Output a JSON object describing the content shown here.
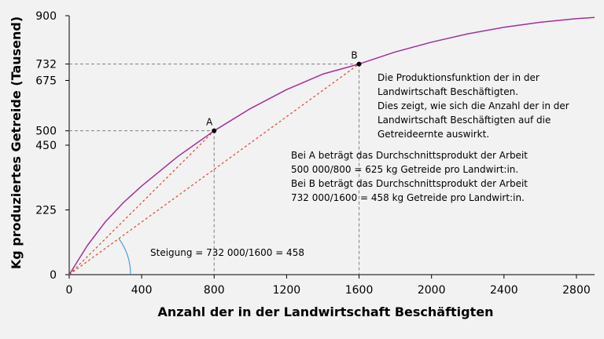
{
  "chart_data": {
    "type": "line",
    "xlabel": "Anzahl der in der Landwirtschaft Beschäftigten",
    "ylabel": "Kg produziertes Getreide (Tausend)",
    "xlim": [
      0,
      2900
    ],
    "ylim": [
      0,
      900
    ],
    "x_ticks": [
      "0",
      "400",
      "800",
      "1200",
      "1600",
      "2000",
      "2400",
      "2800"
    ],
    "y_ticks": [
      "0",
      "225",
      "450",
      "500",
      "675",
      "732",
      "900"
    ],
    "grid": false,
    "series": [
      {
        "x": [
          0,
          100,
          200,
          300,
          400,
          600,
          800,
          1000,
          1200,
          1400,
          1600,
          1800,
          2000,
          2200,
          2400,
          2600,
          2800,
          2900
        ],
        "y": [
          0,
          101,
          184,
          251,
          308,
          411,
          500,
          577,
          643,
          697,
          732,
          774,
          808,
          837,
          860,
          877,
          890,
          894
        ]
      }
    ],
    "points": [
      {
        "label": "A",
        "x": 800,
        "y": 500
      },
      {
        "label": "B",
        "x": 1600,
        "y": 732
      }
    ],
    "slope_label": "Steigung = 732 000/1600 = 458",
    "annotations": [
      "Die Produktionsfunktion der in der",
      "Landwirtschaft Beschäftigten.",
      "Dies zeigt, wie sich die Anzahl der in der",
      "Landwirtschaft Beschäftigten auf die",
      "Getreideernte auswirkt."
    ],
    "averages_text": [
      "Bei A beträgt das Durchschnittsprodukt der Arbeit",
      "500 000/800 = 625 kg Getreide pro Landwirt:in.",
      "Bei B beträgt das Durchschnittsprodukt der Arbeit",
      "732 000/1600 = 458 kg Getreide pro Landwirt:in."
    ],
    "colors": {
      "curve": "#a0309a",
      "rays": "#e0442c",
      "guides": "#808080",
      "angle_arc": "#2f8fd8"
    }
  }
}
